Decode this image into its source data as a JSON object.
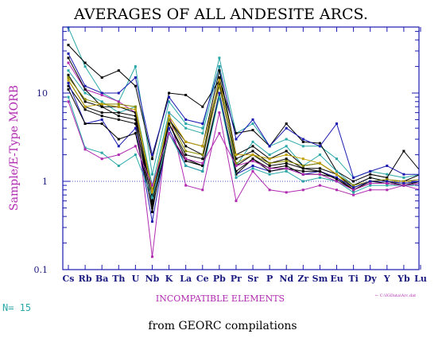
{
  "chart_data": {
    "type": "line",
    "title": "AVERAGES OF ALL ANDESITE ARCS.",
    "ylabel": "Sample/E-Type MORB",
    "xlabel": "INCOMPATIBLE ELEMENTS",
    "y_scale": "log",
    "ylim": [
      0.1,
      60
    ],
    "yticks": [
      {
        "value": 0.1,
        "label": "0.1"
      },
      {
        "value": 1,
        "label": "1"
      },
      {
        "value": 10,
        "label": "10"
      }
    ],
    "reference_line": 1,
    "categories": [
      "Cs",
      "Rb",
      "Ba",
      "Th",
      "U",
      "Nb",
      "K",
      "La",
      "Ce",
      "Pb",
      "Pr",
      "Sr",
      "P",
      "Nd",
      "Zr",
      "Sm",
      "Eu",
      "Ti",
      "Dy",
      "Y",
      "Yb",
      "Lu"
    ],
    "tick_labels": [
      "Cs",
      "Rb",
      "Ba",
      "Th",
      "U",
      "Nb",
      "K",
      "La",
      "Ce",
      "Pb",
      "Pr",
      "Sr",
      "P",
      "Nd",
      "Zr",
      "Sm",
      "Eu",
      "Ti",
      "Dy",
      "Y",
      "Yb",
      "Lu"
    ],
    "file_label": "← C:\\IGData\\Arc.dat",
    "count_label": "N= 15",
    "source_label": "from GEORC compilations",
    "colors": {
      "axis": "#1a1ab0",
      "title": "#000000",
      "ylabel": "#b02ab0",
      "xlabel": "#b02ab0",
      "count": "#2aa8a8"
    },
    "series": [
      {
        "color": "#2aa8a8",
        "values": [
          55,
          20,
          10,
          8,
          20,
          1.2,
          8,
          4.5,
          4,
          25,
          3.5,
          4.5,
          2.5,
          3,
          2.5,
          2.5,
          1.8,
          1.1,
          1.3,
          1.2,
          1.1,
          1.2
        ]
      },
      {
        "color": "#000000",
        "values": [
          35,
          22,
          15,
          18,
          12,
          1.8,
          10,
          9.5,
          7,
          14,
          3.5,
          3.8,
          2.5,
          4.5,
          2.8,
          2.7,
          1.3,
          1,
          1.2,
          1.1,
          2.2,
          1.3
        ]
      },
      {
        "color": "#1a1ab0",
        "values": [
          28,
          12,
          10,
          10,
          15,
          2,
          9,
          5,
          4.5,
          20,
          3,
          5,
          2.5,
          4,
          3,
          2.5,
          4.5,
          1.1,
          1.3,
          1.5,
          1.2,
          1.2
        ]
      },
      {
        "color": "#b02ab0",
        "values": [
          22,
          11,
          9.5,
          8,
          6,
          0.14,
          6,
          0.9,
          0.8,
          6,
          0.6,
          1.3,
          0.8,
          0.75,
          0.8,
          0.9,
          0.8,
          0.7,
          0.8,
          0.8,
          0.9,
          0.8
        ]
      },
      {
        "color": "#2aa8a8",
        "values": [
          18,
          10,
          8,
          6,
          7,
          0.9,
          6,
          4,
          3.5,
          20,
          1.5,
          2.8,
          2,
          2.5,
          1.5,
          2,
          1.3,
          0.9,
          1.1,
          1,
          1,
          1
        ]
      },
      {
        "color": "#000000",
        "values": [
          25,
          11,
          7,
          5.5,
          5,
          0.45,
          5,
          2.8,
          2.5,
          18,
          2,
          2.5,
          1.8,
          2.2,
          1.5,
          1.6,
          1.2,
          0.9,
          1.1,
          1,
          1,
          1.2
        ]
      },
      {
        "color": "#000000",
        "values": [
          16,
          8,
          7,
          7,
          6,
          0.55,
          5,
          2.5,
          2,
          15,
          1.8,
          2.2,
          1.6,
          1.8,
          1.4,
          1.4,
          1.2,
          0.85,
          1,
          1,
          0.95,
          1
        ]
      },
      {
        "color": "#000000",
        "values": [
          14,
          7,
          6,
          6,
          5.5,
          0.7,
          4.5,
          2,
          1.8,
          13,
          1.5,
          2,
          1.5,
          1.6,
          1.4,
          1.3,
          1.1,
          0.85,
          1,
          1,
          0.9,
          1
        ]
      },
      {
        "color": "#8a8a00",
        "values": [
          15,
          8.5,
          7.5,
          7.5,
          7,
          0.8,
          5,
          2.2,
          2,
          12,
          1.6,
          2,
          1.6,
          1.7,
          1.5,
          1.6,
          1.2,
          0.9,
          1,
          1.05,
          1,
          1.05
        ]
      },
      {
        "color": "#c0a000",
        "values": [
          14,
          7,
          7.5,
          7,
          6.5,
          0.75,
          5.5,
          2.8,
          2.5,
          14,
          2,
          2,
          1.8,
          2,
          1.8,
          1.6,
          1.2,
          0.8,
          1,
          1,
          1,
          1
        ]
      },
      {
        "color": "#000000",
        "values": [
          12,
          6.5,
          5.5,
          5,
          4.5,
          0.6,
          4.5,
          1.8,
          1.5,
          10,
          1.3,
          1.8,
          1.4,
          1.5,
          1.2,
          1.2,
          1.1,
          0.8,
          1,
          0.95,
          0.9,
          0.95
        ]
      },
      {
        "color": "#1a1ab0",
        "values": [
          13,
          4.5,
          5,
          2.5,
          4,
          0.35,
          4,
          1.5,
          1.3,
          10,
          1.2,
          1.5,
          1.3,
          1.4,
          1.2,
          1.3,
          1.1,
          0.85,
          1,
          1,
          0.95,
          1
        ]
      },
      {
        "color": "#000000",
        "values": [
          11,
          4.5,
          4.5,
          3,
          3.5,
          0.5,
          3.5,
          1.7,
          1.5,
          9,
          1.2,
          1.8,
          1.3,
          1.4,
          1.3,
          1.3,
          1.05,
          0.8,
          0.95,
          0.95,
          0.9,
          0.95
        ]
      },
      {
        "color": "#2aa8a8",
        "values": [
          9,
          2.4,
          2.1,
          1.5,
          2,
          0.65,
          3.5,
          1.5,
          1.3,
          9,
          1.1,
          1.4,
          1.2,
          1.3,
          1,
          1.1,
          1,
          0.75,
          0.9,
          0.9,
          0.9,
          0.9
        ]
      },
      {
        "color": "#b02ab0",
        "values": [
          8,
          2.3,
          1.8,
          2,
          2.5,
          0.9,
          3.5,
          1.8,
          1.6,
          3.5,
          1.5,
          1.7,
          1.4,
          1.4,
          1.2,
          1.2,
          1,
          0.8,
          0.95,
          0.95,
          0.9,
          0.95
        ]
      }
    ]
  }
}
